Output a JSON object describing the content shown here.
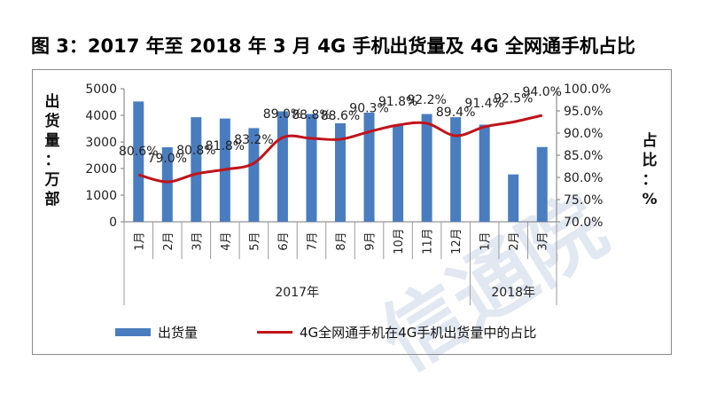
{
  "title": "图 3：2017 年至 2018 年 3 月 4G 手机出货量及 4G 全网通手机占比",
  "watermark": "信通院",
  "left_axis_label": [
    "出",
    "货",
    "量",
    "：",
    "万",
    "部"
  ],
  "right_axis_label": [
    "占",
    "比",
    "：",
    "%"
  ],
  "legend": {
    "bar_label": "出货量",
    "line_label": "4G全网通手机在4G手机出货量中的占比"
  },
  "colors": {
    "bar": "#4a7dbf",
    "line": "#c0141b"
  },
  "chart_data": {
    "type": "bar",
    "categories": [
      "1月",
      "2月",
      "3月",
      "4月",
      "5月",
      "6月",
      "7月",
      "8月",
      "9月",
      "10月",
      "11月",
      "12月",
      "1月",
      "2月",
      "3月"
    ],
    "year_groups": [
      {
        "label": "2017年",
        "start": 0,
        "end": 11
      },
      {
        "label": "2018年",
        "start": 12,
        "end": 14
      }
    ],
    "series": [
      {
        "name": "出货量",
        "type": "bar",
        "axis": "left",
        "values": [
          4520,
          2800,
          3930,
          3880,
          3520,
          4150,
          4050,
          3700,
          4100,
          3630,
          4050,
          3930,
          3650,
          1780,
          2810
        ]
      },
      {
        "name": "4G全网通手机在4G手机出货量中的占比",
        "type": "line",
        "axis": "right",
        "values": [
          80.6,
          79.0,
          80.8,
          81.8,
          83.2,
          89.0,
          88.8,
          88.6,
          90.3,
          91.8,
          92.2,
          89.4,
          91.4,
          92.5,
          94.0
        ],
        "labels": [
          "80.6%",
          "79.0%",
          "80.8%",
          "81.8%",
          "83.2%",
          "89.0%",
          "88.8%",
          "88.6%",
          "90.3%",
          "91.8%",
          "92.2%",
          "89.4%",
          "91.4%",
          "92.5%",
          "94.0%"
        ]
      }
    ],
    "y_left": {
      "min": 0,
      "max": 5000,
      "ticks": [
        0,
        1000,
        2000,
        3000,
        4000,
        5000
      ],
      "tick_labels": [
        "0",
        "1000",
        "2000",
        "3000",
        "4000",
        "5000"
      ]
    },
    "y_right": {
      "min": 70,
      "max": 100,
      "ticks": [
        70,
        75,
        80,
        85,
        90,
        95,
        100
      ],
      "tick_labels": [
        "70.0%",
        "75.0%",
        "80.0%",
        "85.0%",
        "90.0%",
        "95.0%",
        "100.0%"
      ]
    },
    "grid": false,
    "legend_position": "bottom"
  }
}
